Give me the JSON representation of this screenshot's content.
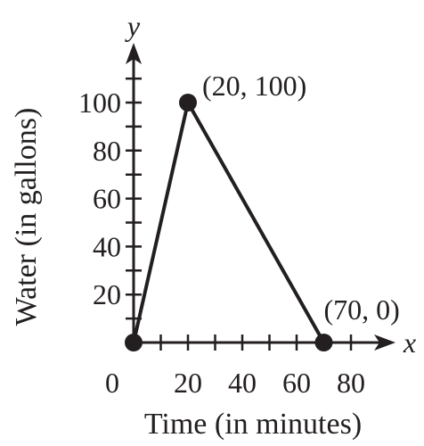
{
  "chart_data": {
    "type": "line",
    "title": "",
    "xlabel": "Time (in minutes)",
    "ylabel": "Water (in gallons)",
    "x_axis_var": "x",
    "y_axis_var": "y",
    "xlim": [
      0,
      95
    ],
    "ylim": [
      0,
      120
    ],
    "x_tick_step": 10,
    "y_tick_step": 10,
    "x_tick_labels": [
      {
        "value": 0,
        "label": "0"
      },
      {
        "value": 20,
        "label": "20"
      },
      {
        "value": 40,
        "label": "40"
      },
      {
        "value": 60,
        "label": "60"
      },
      {
        "value": 80,
        "label": "80"
      }
    ],
    "y_tick_labels": [
      {
        "value": 20,
        "label": "20"
      },
      {
        "value": 40,
        "label": "40"
      },
      {
        "value": 60,
        "label": "60"
      },
      {
        "value": 80,
        "label": "80"
      },
      {
        "value": 100,
        "label": "100"
      }
    ],
    "grid": false,
    "series": [
      {
        "x": [
          0,
          20,
          70
        ],
        "y": [
          0,
          100,
          0
        ]
      }
    ],
    "annotations": [
      {
        "x": 20,
        "y": 100,
        "text": "(20, 100)"
      },
      {
        "x": 70,
        "y": 0,
        "text": "(70, 0)"
      }
    ],
    "colors": {
      "ink": "#231f20",
      "background": "#ffffff"
    }
  }
}
